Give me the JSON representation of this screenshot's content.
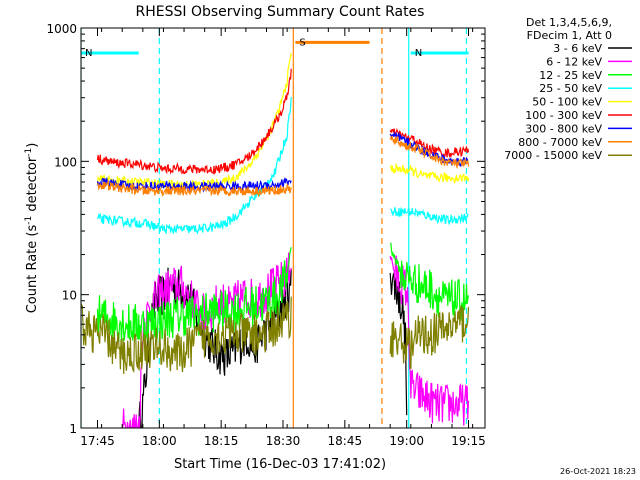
{
  "chart_data": {
    "type": "line",
    "title": "RHESSI Observing Summary Count Rates",
    "xlabel": "Start Time (16-Dec-03 17:41:02)",
    "ylabel_main": "Count Rate (s",
    "ylabel_sup1": "-1",
    "ylabel_mid": " detector",
    "ylabel_sup2": "-1",
    "ylabel_end": ")",
    "ylabel": "Count Rate (s-1 detector-1)",
    "yscale": "log",
    "ylim": [
      1,
      1000
    ],
    "xlim_minutes": [
      0,
      98
    ],
    "x_ticks": [
      {
        "m": 4,
        "label": "17:45"
      },
      {
        "m": 19,
        "label": "18:00"
      },
      {
        "m": 34,
        "label": "18:15"
      },
      {
        "m": 49,
        "label": "18:30"
      },
      {
        "m": 64,
        "label": "18:45"
      },
      {
        "m": 79,
        "label": "19:00"
      },
      {
        "m": 94,
        "label": "19:15"
      }
    ],
    "y_ticks": [
      {
        "v": 1,
        "label": "1"
      },
      {
        "v": 10,
        "label": "10"
      },
      {
        "v": 100,
        "label": "100"
      },
      {
        "v": 1000,
        "label": "1000"
      }
    ],
    "legend_header": [
      "Det 1,3,4,5,6,9,",
      "FDecim 1, Att 0"
    ],
    "timestamp": "26-Oct-2021 18:23",
    "flags": [
      {
        "name": "N",
        "color": "#00ffff",
        "start": 0,
        "end": 14,
        "level": 650
      },
      {
        "name": "N",
        "color": "#00ffff",
        "start": 80,
        "end": 94,
        "level": 650
      },
      {
        "name": "S",
        "color": "#ff8000",
        "start": 52,
        "end": 70,
        "level": 780
      }
    ],
    "vlines": [
      {
        "m": 0,
        "color": "#00ffff",
        "style": "solid"
      },
      {
        "m": 19,
        "color": "#00ffff",
        "style": "dashed"
      },
      {
        "m": 79.5,
        "color": "#00ffff",
        "style": "solid"
      },
      {
        "m": 93.5,
        "color": "#00ffff",
        "style": "dashed"
      },
      {
        "m": 51.5,
        "color": "#ff8000",
        "style": "solid"
      },
      {
        "m": 73,
        "color": "#ff8000",
        "style": "dashed"
      }
    ],
    "series": [
      {
        "name": "3 - 6 keV",
        "color": "#000000",
        "segments": [
          [
            [
              14,
              1
            ],
            [
              15,
              1.5
            ],
            [
              16,
              3
            ],
            [
              17,
              6
            ],
            [
              18,
              9
            ],
            [
              20,
              10
            ],
            [
              22,
              12
            ],
            [
              24,
              11
            ],
            [
              26,
              10
            ],
            [
              28,
              7
            ],
            [
              30,
              5
            ],
            [
              32,
              4
            ],
            [
              34,
              3.5
            ],
            [
              36,
              3.5
            ],
            [
              38,
              4
            ],
            [
              40,
              5
            ],
            [
              42,
              4
            ],
            [
              44,
              5
            ],
            [
              46,
              6
            ],
            [
              48,
              7
            ],
            [
              50,
              10
            ],
            [
              51,
              12
            ]
          ],
          [
            [
              75,
              15
            ],
            [
              76,
              12
            ],
            [
              77,
              10
            ],
            [
              78,
              8
            ],
            [
              78.8,
              4
            ],
            [
              79,
              1
            ]
          ]
        ]
      },
      {
        "name": "6 - 12 keV",
        "color": "#ff00ff",
        "segments": [
          [
            [
              10,
              1
            ],
            [
              14,
              1
            ],
            [
              14.5,
              2
            ],
            [
              15,
              6
            ],
            [
              17,
              8
            ],
            [
              19,
              10
            ],
            [
              21,
              11
            ],
            [
              24,
              12
            ],
            [
              26,
              10
            ],
            [
              28,
              8
            ],
            [
              30,
              7
            ],
            [
              32,
              8
            ],
            [
              34,
              9
            ],
            [
              36,
              8
            ],
            [
              38,
              9
            ],
            [
              40,
              10
            ],
            [
              42,
              9
            ],
            [
              44,
              10
            ],
            [
              46,
              11
            ],
            [
              48,
              12
            ],
            [
              50,
              14
            ],
            [
              51,
              16
            ]
          ],
          [
            [
              75,
              20
            ],
            [
              76,
              15
            ],
            [
              77,
              13
            ],
            [
              78,
              12
            ],
            [
              79,
              11
            ],
            [
              79.5,
              6
            ],
            [
              80,
              2
            ],
            [
              86,
              1.5
            ],
            [
              94,
              1.5
            ]
          ]
        ]
      },
      {
        "name": "12 - 25 keV",
        "color": "#00ff00",
        "segments": [
          [
            [
              4,
              7
            ],
            [
              8,
              6.5
            ],
            [
              12,
              6
            ],
            [
              16,
              6
            ],
            [
              20,
              6.5
            ],
            [
              24,
              7
            ],
            [
              28,
              7
            ],
            [
              32,
              7.5
            ],
            [
              36,
              7.5
            ],
            [
              40,
              8
            ],
            [
              44,
              8.5
            ],
            [
              48,
              10
            ],
            [
              50,
              14
            ],
            [
              51,
              24
            ]
          ],
          [
            [
              75,
              24
            ],
            [
              76,
              19
            ],
            [
              78,
              14
            ],
            [
              80,
              13
            ],
            [
              82,
              12
            ],
            [
              85,
              11
            ],
            [
              88,
              9
            ],
            [
              91,
              9
            ],
            [
              94,
              9
            ]
          ]
        ]
      },
      {
        "name": "25 - 50 keV",
        "color": "#00ffff",
        "segments": [
          [
            [
              4,
              37
            ],
            [
              8,
              36
            ],
            [
              12,
              35
            ],
            [
              16,
              34
            ],
            [
              20,
              31
            ],
            [
              24,
              31
            ],
            [
              28,
              31
            ],
            [
              32,
              32
            ],
            [
              35,
              34
            ],
            [
              38,
              40
            ],
            [
              41,
              50
            ],
            [
              44,
              62
            ],
            [
              47,
              82
            ],
            [
              50,
              160
            ],
            [
              51,
              300
            ]
          ],
          [
            [
              75,
              42
            ],
            [
              78,
              42
            ],
            [
              80,
              42
            ],
            [
              83,
              40
            ],
            [
              86,
              38
            ],
            [
              89,
              36
            ],
            [
              91,
              37
            ],
            [
              94,
              38
            ]
          ]
        ]
      },
      {
        "name": "50 - 100 keV",
        "color": "#ffff00",
        "segments": [
          [
            [
              4,
              73
            ],
            [
              8,
              72
            ],
            [
              12,
              70
            ],
            [
              16,
              69
            ],
            [
              20,
              67
            ],
            [
              24,
              67
            ],
            [
              28,
              67
            ],
            [
              32,
              68
            ],
            [
              35,
              70
            ],
            [
              38,
              78
            ],
            [
              41,
              95
            ],
            [
              44,
              130
            ],
            [
              46,
              170
            ],
            [
              48,
              240
            ],
            [
              50,
              400
            ],
            [
              51,
              680
            ]
          ],
          [
            [
              75,
              88
            ],
            [
              78,
              87
            ],
            [
              80,
              85
            ],
            [
              83,
              78
            ],
            [
              86,
              76
            ],
            [
              89,
              75
            ],
            [
              91,
              75
            ],
            [
              94,
              76
            ]
          ]
        ]
      },
      {
        "name": "100 - 300 keV",
        "color": "#ff0000",
        "segments": [
          [
            [
              4,
              105
            ],
            [
              8,
              98
            ],
            [
              12,
              96
            ],
            [
              16,
              93
            ],
            [
              20,
              88
            ],
            [
              24,
              88
            ],
            [
              28,
              87
            ],
            [
              32,
              87
            ],
            [
              35,
              90
            ],
            [
              38,
              96
            ],
            [
              41,
              110
            ],
            [
              44,
              140
            ],
            [
              47,
              190
            ],
            [
              49,
              250
            ],
            [
              50,
              310
            ],
            [
              51,
              480
            ]
          ],
          [
            [
              75,
              165
            ],
            [
              77,
              160
            ],
            [
              79,
              150
            ],
            [
              81,
              145
            ],
            [
              83,
              130
            ],
            [
              86,
              120
            ],
            [
              89,
              115
            ],
            [
              91,
              118
            ],
            [
              94,
              120
            ]
          ]
        ]
      },
      {
        "name": "300 - 800 keV",
        "color": "#0000ff",
        "segments": [
          [
            [
              4,
              70
            ],
            [
              8,
              68
            ],
            [
              12,
              65
            ],
            [
              16,
              65
            ],
            [
              20,
              65
            ],
            [
              24,
              65
            ],
            [
              28,
              64
            ],
            [
              32,
              65
            ],
            [
              36,
              65
            ],
            [
              40,
              65
            ],
            [
              44,
              66
            ],
            [
              48,
              67
            ],
            [
              51,
              72
            ]
          ],
          [
            [
              75,
              155
            ],
            [
              77,
              150
            ],
            [
              79,
              140
            ],
            [
              81,
              130
            ],
            [
              83,
              120
            ],
            [
              86,
              110
            ],
            [
              89,
              100
            ],
            [
              91,
              100
            ],
            [
              94,
              100
            ]
          ]
        ]
      },
      {
        "name": "800 - 7000 keV",
        "color": "#ff8000",
        "segments": [
          [
            [
              4,
              67
            ],
            [
              8,
              64
            ],
            [
              12,
              62
            ],
            [
              16,
              60
            ],
            [
              20,
              60
            ],
            [
              24,
              60
            ],
            [
              28,
              60
            ],
            [
              32,
              60
            ],
            [
              36,
              60
            ],
            [
              40,
              60
            ],
            [
              44,
              60
            ],
            [
              48,
              61
            ],
            [
              51,
              62
            ]
          ],
          [
            [
              75,
              145
            ],
            [
              77,
              140
            ],
            [
              79,
              130
            ],
            [
              81,
              125
            ],
            [
              83,
              118
            ],
            [
              86,
              105
            ],
            [
              89,
              98
            ],
            [
              91,
              96
            ],
            [
              94,
              96
            ]
          ]
        ]
      },
      {
        "name": "7000 - 15000 keV",
        "color": "#808000",
        "segments": [
          [
            [
              0,
              6
            ],
            [
              4,
              5
            ],
            [
              6,
              5
            ],
            [
              8,
              4
            ],
            [
              10,
              3.5
            ],
            [
              14,
              3.8
            ],
            [
              16,
              4
            ],
            [
              20,
              4
            ],
            [
              24,
              3.5
            ],
            [
              28,
              4.5
            ],
            [
              32,
              5
            ],
            [
              36,
              5
            ],
            [
              40,
              5
            ],
            [
              44,
              5
            ],
            [
              48,
              6
            ],
            [
              51,
              7
            ]
          ],
          [
            [
              75,
              5
            ],
            [
              77,
              4.5
            ],
            [
              80,
              4
            ],
            [
              82,
              5
            ],
            [
              85,
              5
            ],
            [
              88,
              5.5
            ],
            [
              91,
              6
            ],
            [
              94,
              6.5
            ]
          ]
        ]
      }
    ]
  }
}
